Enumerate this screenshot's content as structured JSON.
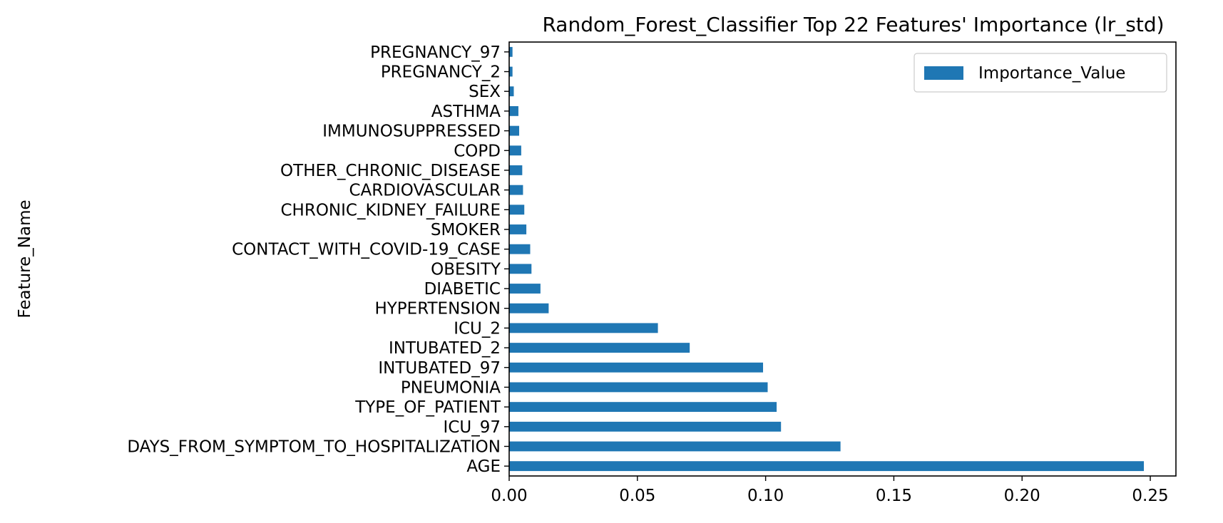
{
  "chart_data": {
    "type": "bar",
    "orientation": "horizontal",
    "title": "Random_Forest_Classifier Top 22 Features' Importance (lr_std)",
    "xlabel": "",
    "ylabel": "Feature_Name",
    "xlim": [
      0,
      0.26
    ],
    "xticks": [
      "0.00",
      "0.05",
      "0.10",
      "0.15",
      "0.20",
      "0.25"
    ],
    "xtick_values": [
      0,
      0.05,
      0.1,
      0.15,
      0.2,
      0.25
    ],
    "categories": [
      "AGE",
      "DAYS_FROM_SYMPTOM_TO_HOSPITALIZATION",
      "ICU_97",
      "TYPE_OF_PATIENT",
      "PNEUMONIA",
      "INTUBATED_97",
      "INTUBATED_2",
      "ICU_2",
      "HYPERTENSION",
      "DIABETIC",
      "OBESITY",
      "CONTACT_WITH_COVID-19_CASE",
      "SMOKER",
      "CHRONIC_KIDNEY_FAILURE",
      "CARDIOVASCULAR",
      "OTHER_CHRONIC_DISEASE",
      "COPD",
      "IMMUNOSUPPRESSED",
      "ASTHMA",
      "SEX",
      "PREGNANCY_2",
      "PREGNANCY_97"
    ],
    "series": [
      {
        "name": "Importance_Value",
        "color": "#1f77b4",
        "values": [
          0.2475,
          0.1292,
          0.106,
          0.1043,
          0.1008,
          0.099,
          0.0704,
          0.058,
          0.0154,
          0.0122,
          0.0087,
          0.0082,
          0.0067,
          0.0059,
          0.0054,
          0.0051,
          0.0047,
          0.0039,
          0.0036,
          0.0018,
          0.0013,
          0.0013
        ]
      }
    ],
    "legend": {
      "position": "top-right",
      "label": "Importance_Value"
    },
    "grid": false
  }
}
